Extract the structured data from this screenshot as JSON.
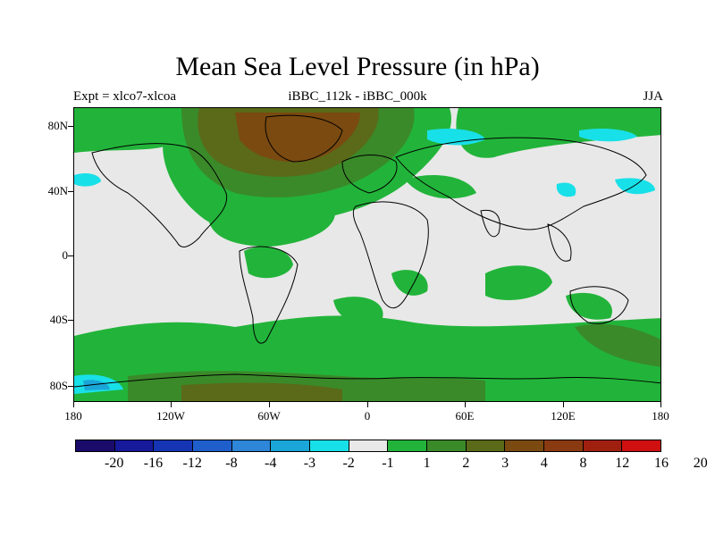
{
  "title": "Mean Sea Level Pressure (in hPa)",
  "subtitle_left": "Expt = xlco7-xlcoa",
  "subtitle_center": "iBBC_112k - iBBC_000k",
  "subtitle_right": "JJA",
  "lat_labels": [
    "80N",
    "40N",
    "0",
    "40S",
    "80S"
  ],
  "lon_labels": [
    "180",
    "120W",
    "60W",
    "0",
    "60E",
    "120E",
    "180"
  ],
  "colorbar": {
    "colors": [
      "#1a0b6b",
      "#16199a",
      "#1535b4",
      "#1e5fcc",
      "#2e86d8",
      "#1aa6d8",
      "#18e0e8",
      "#e8e8e8",
      "#22b43a",
      "#3a8a2a",
      "#5a6a18",
      "#7a4a10",
      "#8a3a10",
      "#a02010",
      "#d01010"
    ],
    "labels": [
      "-20",
      "-16",
      "-12",
      "-8",
      "-4",
      "-3",
      "-2",
      "-1",
      "1",
      "2",
      "3",
      "4",
      "8",
      "12",
      "16",
      "20"
    ]
  },
  "map_colors": {
    "background": "#e8e8e8",
    "green": "#22b43a",
    "dark_green": "#3a8a2a",
    "olive": "#5a6a18",
    "brown": "#7a4a10",
    "cyan": "#18e0e8",
    "blue": "#1aa6d8",
    "coast": "#000000"
  }
}
